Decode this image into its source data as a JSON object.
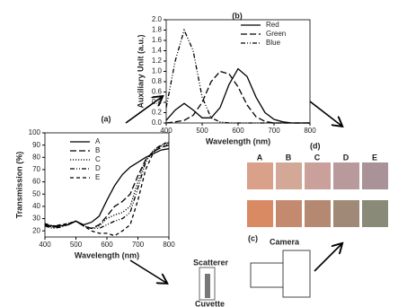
{
  "chart_data": [
    {
      "type": "line",
      "title": "(a)",
      "x_label": "Wavelength (nm)",
      "y_label": "Transmission (%)",
      "x": [
        400,
        425,
        450,
        475,
        500,
        525,
        550,
        575,
        600,
        625,
        650,
        675,
        700,
        725,
        750,
        775,
        800
      ],
      "xlim": [
        400,
        800
      ],
      "xticks": [
        400,
        500,
        600,
        700,
        800
      ],
      "ylim": [
        15,
        100
      ],
      "yticks": [
        20,
        30,
        40,
        50,
        60,
        70,
        80,
        90,
        100
      ],
      "series": [
        {
          "name": "A",
          "color": "#000000",
          "dash": "solid",
          "values": [
            25,
            24,
            24,
            25,
            28,
            25,
            27,
            32,
            45,
            57,
            66,
            72,
            76,
            80,
            83,
            86,
            87
          ]
        },
        {
          "name": "B",
          "color": "#000000",
          "dash": "long-dash",
          "values": [
            25,
            23,
            24,
            25,
            28,
            24,
            22,
            25,
            32,
            40,
            44,
            50,
            65,
            78,
            85,
            88,
            90
          ]
        },
        {
          "name": "C",
          "color": "#000000",
          "dash": "dotted",
          "values": [
            25,
            23,
            24,
            26,
            28,
            24,
            22,
            24,
            30,
            33,
            35,
            40,
            60,
            78,
            85,
            89,
            91
          ]
        },
        {
          "name": "D",
          "color": "#000000",
          "dash": "dash-dot-dot",
          "values": [
            24,
            22,
            23,
            25,
            28,
            24,
            22,
            22,
            25,
            28,
            30,
            35,
            55,
            76,
            86,
            90,
            92
          ]
        },
        {
          "name": "E",
          "color": "#000000",
          "dash": "dashed",
          "values": [
            26,
            24,
            25,
            26,
            28,
            24,
            20,
            18,
            18,
            16,
            20,
            25,
            45,
            70,
            84,
            90,
            93
          ]
        }
      ]
    },
    {
      "type": "line",
      "title": "(b)",
      "x_label": "Wavelength (nm)",
      "y_label": "Auxiliary Unit (a.u.)",
      "x": [
        400,
        425,
        450,
        475,
        500,
        525,
        550,
        575,
        600,
        625,
        650,
        675,
        700,
        725,
        750,
        775,
        800
      ],
      "xlim": [
        400,
        800
      ],
      "xticks": [
        400,
        500,
        600,
        700,
        800
      ],
      "ylim": [
        0,
        2
      ],
      "yticks": [
        {
          "value": 0,
          "label": "0.0"
        },
        {
          "value": 0.2,
          "label": "0.2"
        },
        {
          "value": 0.4,
          "label": "0.4"
        },
        {
          "value": 0.6,
          "label": "0.6"
        },
        {
          "value": 0.8,
          "label": "0.8"
        },
        {
          "value": 1,
          "label": "1.0"
        },
        {
          "value": 1.2,
          "label": "1.2"
        },
        {
          "value": 1.4,
          "label": "1.4"
        },
        {
          "value": 1.6,
          "label": "1.6"
        },
        {
          "value": 1.8,
          "label": "1.8"
        },
        {
          "value": 2,
          "label": "2.0"
        }
      ],
      "series": [
        {
          "name": "Red",
          "color": "#000000",
          "dash": "solid",
          "values": [
            0.05,
            0.25,
            0.38,
            0.25,
            0.1,
            0.1,
            0.3,
            0.75,
            1.05,
            0.9,
            0.5,
            0.2,
            0.07,
            0.02,
            0,
            0,
            0
          ]
        },
        {
          "name": "Green",
          "color": "#000000",
          "dash": "long-dash",
          "values": [
            0,
            0.02,
            0.05,
            0.15,
            0.4,
            0.8,
            1,
            0.95,
            0.7,
            0.35,
            0.12,
            0.03,
            0,
            0,
            0,
            0,
            0
          ]
        },
        {
          "name": "Blue",
          "color": "#000000",
          "dash": "dash-dot-dot",
          "values": [
            0.3,
            1.2,
            1.8,
            1.4,
            0.5,
            0.1,
            0.02,
            0,
            0,
            0,
            0,
            0,
            0,
            0,
            0,
            0,
            0
          ]
        }
      ]
    }
  ],
  "swatches": {
    "label": "(d)",
    "columns": [
      "A",
      "B",
      "C",
      "D",
      "E"
    ],
    "rows": [
      [
        "#d9a08a",
        "#d4a897",
        "#c9a19a",
        "#b99a9c",
        "#a99298"
      ],
      [
        "#d98a63",
        "#c48a70",
        "#b58872",
        "#a08a77",
        "#8a8a78"
      ]
    ]
  },
  "diagram": {
    "label": "(c)",
    "scatterer": "Scatterer",
    "cuvette": "Cuvette",
    "camera": "Camera"
  }
}
